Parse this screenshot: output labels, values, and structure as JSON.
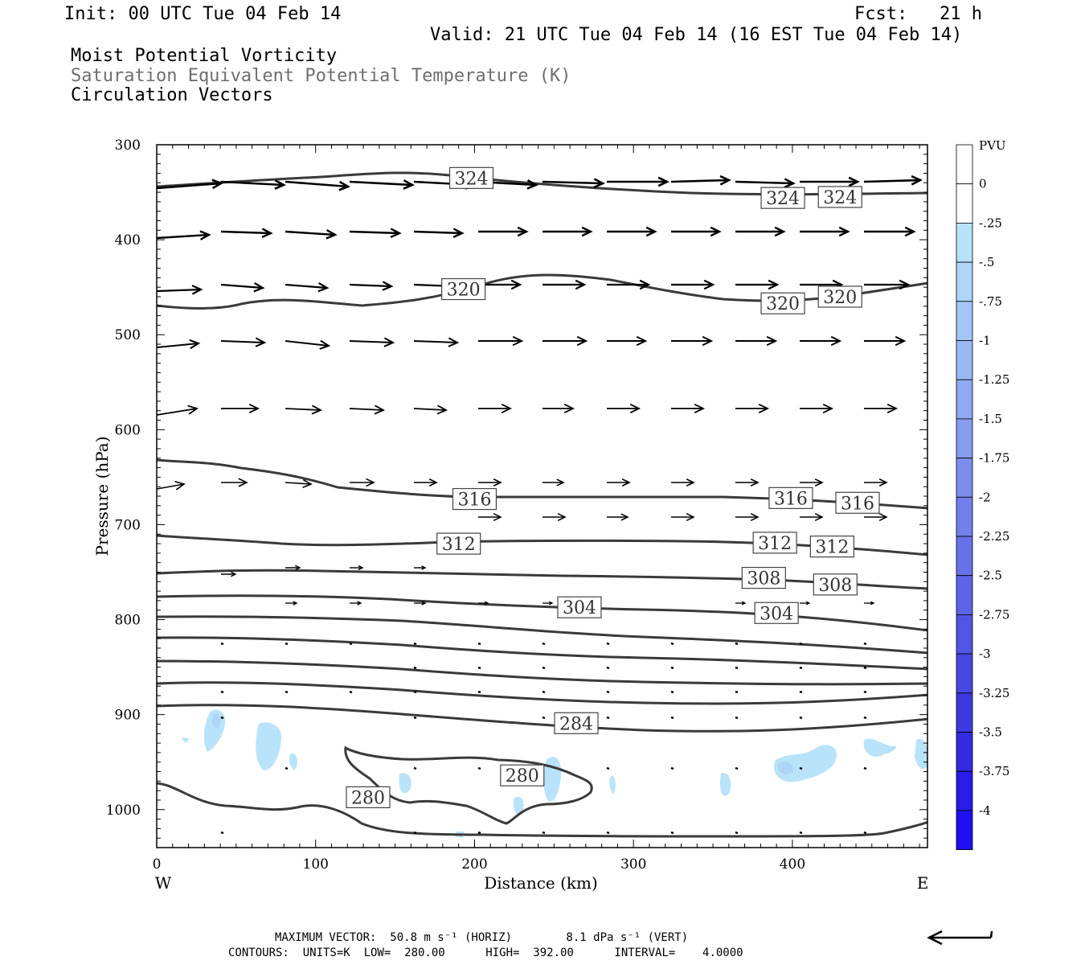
{
  "header": {
    "init": "Init: 00 UTC Tue 04 Feb 14",
    "fcst": "Fcst:   21 h",
    "valid": "Valid: 21 UTC Tue 04 Feb 14 (16 EST Tue 04 Feb 14)",
    "field1": "Moist Potential Vorticity",
    "field2": "Saturation Equivalent Potential Temperature (K)",
    "field3": "Circulation Vectors"
  },
  "footer": {
    "max_vector": "MAXIMUM VECTOR:  50.8 m s⁻¹ (HORIZ)        8.1 dPa s⁻¹ (VERT)",
    "contours": "CONTOURS:  UNITS=K  LOW=  280.00      HIGH=  392.00      INTERVAL=    4.0000"
  },
  "colorbar": {
    "title": "PVU",
    "labels": [
      "0",
      "-.25",
      "-.5",
      "-.75",
      "-1",
      "-1.25",
      "-1.5",
      "-1.75",
      "-2",
      "-2.25",
      "-2.5",
      "-2.75",
      "-3",
      "-3.25",
      "-3.5",
      "-3.75",
      "-4"
    ],
    "colors": [
      "#ffffff",
      "#ffffff",
      "#b9e3fb",
      "#aed5f8",
      "#a4c6f6",
      "#9ab8f4",
      "#8faaf2",
      "#859cf0",
      "#7b8eee",
      "#7080ec",
      "#6672ea",
      "#5c64e8",
      "#5155e6",
      "#4747e4",
      "#3c38e2",
      "#322ae0",
      "#281ce6",
      "#1e10f0"
    ]
  },
  "chart_data": {
    "type": "cross-section contour",
    "xlabel": "Distance (km)",
    "ylabel": "Pressure (hPa)",
    "xlim": [
      0,
      485
    ],
    "ylim": [
      1040,
      300
    ],
    "x_ticks": [
      0,
      100,
      200,
      300,
      400
    ],
    "y_ticks": [
      300,
      400,
      500,
      600,
      700,
      800,
      900,
      1000
    ],
    "x_end_labels": {
      "left": "W",
      "right": "E"
    },
    "contour_labels": [
      {
        "text": "324",
        "x": 198,
        "p": 335
      },
      {
        "text": "324",
        "x": 394,
        "p": 356
      },
      {
        "text": "324",
        "x": 430,
        "p": 355
      },
      {
        "text": "320",
        "x": 193,
        "p": 452
      },
      {
        "text": "320",
        "x": 394,
        "p": 467
      },
      {
        "text": "320",
        "x": 430,
        "p": 460
      },
      {
        "text": "316",
        "x": 200,
        "p": 673
      },
      {
        "text": "316",
        "x": 399,
        "p": 672
      },
      {
        "text": "316",
        "x": 441,
        "p": 677
      },
      {
        "text": "312",
        "x": 190,
        "p": 720
      },
      {
        "text": "312",
        "x": 389,
        "p": 719
      },
      {
        "text": "312",
        "x": 425,
        "p": 723
      },
      {
        "text": "308",
        "x": 382,
        "p": 756
      },
      {
        "text": "308",
        "x": 427,
        "p": 763
      },
      {
        "text": "304",
        "x": 266,
        "p": 787
      },
      {
        "text": "304",
        "x": 390,
        "p": 793
      },
      {
        "text": "284",
        "x": 264,
        "p": 909
      },
      {
        "text": "280",
        "x": 230,
        "p": 964
      },
      {
        "text": "280",
        "x": 133,
        "p": 987
      }
    ]
  }
}
